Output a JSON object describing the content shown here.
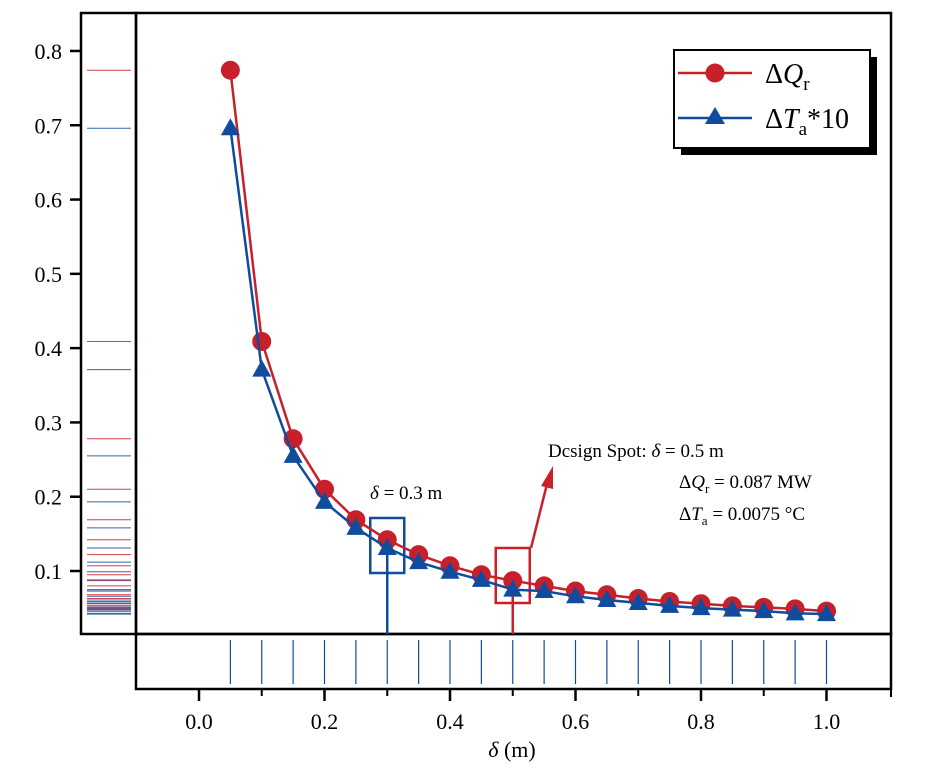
{
  "chart_data": {
    "type": "line",
    "title": "",
    "xlabel": "δ (m)",
    "ylabel": "",
    "xlim": [
      -0.1,
      1.11
    ],
    "ylim": [
      0.03,
      0.845
    ],
    "x_ticks": [
      "0.0",
      "0.2",
      "0.4",
      "0.6",
      "0.8",
      "1.0"
    ],
    "x_tick_values": [
      0.0,
      0.2,
      0.4,
      0.6,
      0.8,
      1.0
    ],
    "x_minor_tick_values": [
      0.1,
      0.3,
      0.5,
      0.7,
      0.9
    ],
    "y_ticks": [
      "0.1",
      "0.2",
      "0.3",
      "0.4",
      "0.5",
      "0.6",
      "0.7",
      "0.8"
    ],
    "y_tick_values": [
      0.1,
      0.2,
      0.3,
      0.4,
      0.5,
      0.6,
      0.7,
      0.8
    ],
    "grid": false,
    "legend_position": "top-right",
    "x": [
      0.05,
      0.1,
      0.15,
      0.2,
      0.25,
      0.3,
      0.35,
      0.4,
      0.45,
      0.5,
      0.55,
      0.6,
      0.65,
      0.7,
      0.75,
      0.8,
      0.85,
      0.9,
      0.95,
      1.0
    ],
    "series": [
      {
        "name": "ΔQr",
        "legend_main": "ΔQ",
        "legend_sub": "r",
        "legend_suffix": "",
        "color": "#c8202a",
        "marker": "circle",
        "values": [
          0.774,
          0.409,
          0.278,
          0.21,
          0.169,
          0.142,
          0.122,
          0.107,
          0.095,
          0.087,
          0.08,
          0.073,
          0.068,
          0.063,
          0.059,
          0.056,
          0.053,
          0.051,
          0.049,
          0.046
        ]
      },
      {
        "name": "ΔTa*10",
        "legend_main": "ΔT",
        "legend_sub": "a",
        "legend_suffix": "*10",
        "color": "#0f4c9e",
        "marker": "triangle",
        "values": [
          0.696,
          0.371,
          0.255,
          0.193,
          0.158,
          0.131,
          0.112,
          0.099,
          0.088,
          0.075,
          0.073,
          0.066,
          0.061,
          0.057,
          0.053,
          0.05,
          0.048,
          0.046,
          0.043,
          0.042
        ]
      }
    ],
    "annotations": {
      "left_marker": {
        "label": "δ = 0.3 m",
        "x": 0.3,
        "color": "#0f4c9e"
      },
      "design_spot": {
        "x": 0.5,
        "color": "#c8202a",
        "line1": "Dcsign Spot:   δ   = 0.5 m",
        "line2_main": "ΔQ",
        "line2_sub": "r",
        "line2_rest": " = 0.087 MW",
        "line3_main": "ΔT",
        "line3_sub": "a",
        "line3_rest": " = 0.0075 °C"
      }
    }
  }
}
